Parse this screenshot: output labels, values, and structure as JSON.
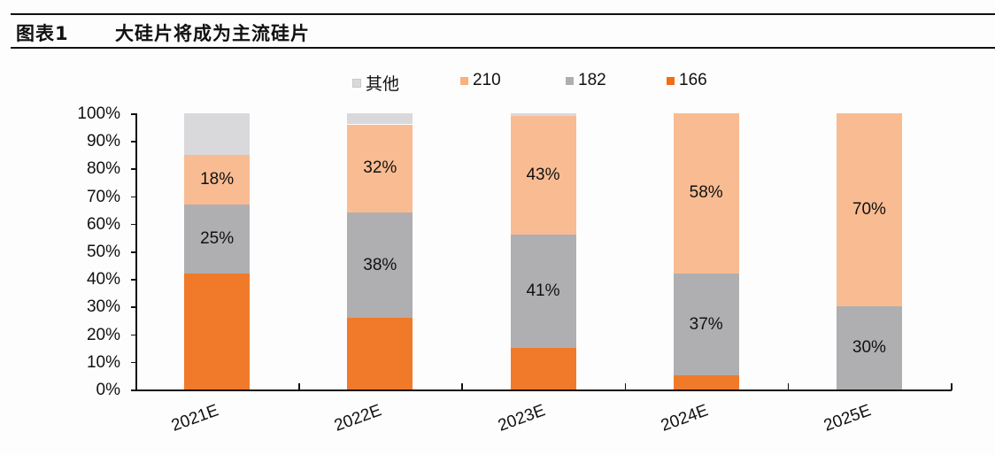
{
  "header": {
    "figure_number": "图表1",
    "title": "大硅片将成为主流硅片"
  },
  "colors": {
    "other": "#d9d9db",
    "s210": "#f9bc92",
    "s182": "#afafb1",
    "s166": "#f07a2a",
    "axis": "#111111"
  },
  "legend": [
    {
      "label": "其他",
      "color": "#d9d9db"
    },
    {
      "label": "210",
      "color": "#f9bc92"
    },
    {
      "label": "182",
      "color": "#afafb1"
    },
    {
      "label": "166",
      "color": "#f07a2a"
    }
  ],
  "chart_data": {
    "type": "bar",
    "stacked": true,
    "title": "大硅片将成为主流硅片",
    "xlabel": "",
    "ylabel": "",
    "ylim": [
      0,
      100
    ],
    "yticks": [
      "0%",
      "10%",
      "20%",
      "30%",
      "40%",
      "50%",
      "60%",
      "70%",
      "80%",
      "90%",
      "100%"
    ],
    "categories": [
      "2021E",
      "2022E",
      "2023E",
      "2024E",
      "2025E"
    ],
    "series": [
      {
        "name": "166",
        "values": [
          42,
          26,
          15,
          5,
          0
        ]
      },
      {
        "name": "182",
        "values": [
          25,
          38,
          41,
          37,
          30
        ]
      },
      {
        "name": "210",
        "values": [
          18,
          32,
          43,
          58,
          70
        ]
      },
      {
        "name": "其他",
        "values": [
          15,
          4,
          1,
          0,
          0
        ]
      }
    ],
    "data_labels": {
      "182": [
        "25%",
        "38%",
        "41%",
        "37%",
        "30%"
      ],
      "210": [
        "18%",
        "32%",
        "43%",
        "58%",
        "70%"
      ]
    },
    "legend_position": "top",
    "grid": false
  }
}
